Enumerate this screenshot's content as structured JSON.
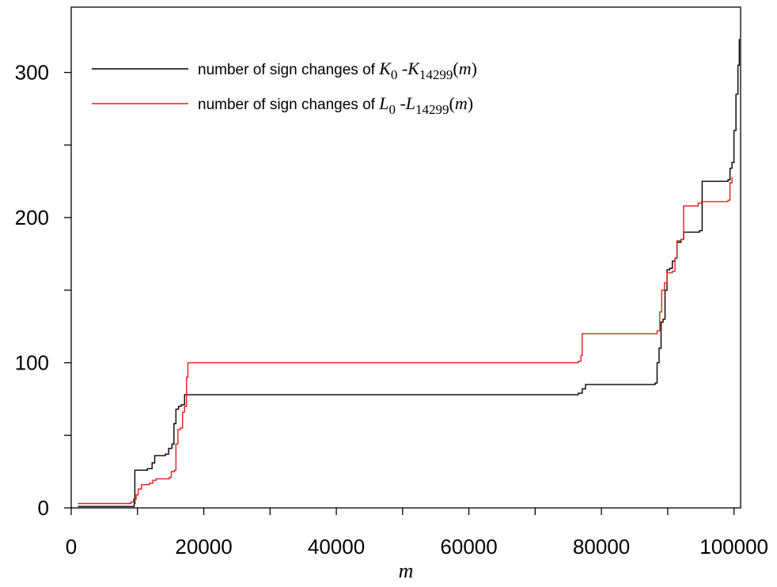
{
  "chart_data": {
    "type": "line",
    "xlabel": "m",
    "ylabel": "",
    "xlim": [
      0,
      101000
    ],
    "ylim": [
      0,
      345
    ],
    "x_ticks": [
      0,
      20000,
      40000,
      60000,
      80000,
      100000
    ],
    "x_tick_labels": [
      "0",
      "20000",
      "40000",
      "60000",
      "80000",
      "100000"
    ],
    "y_ticks": [
      0,
      100,
      200,
      300
    ],
    "y_tick_labels": [
      "0",
      "100",
      "200",
      "300"
    ],
    "x_minor_ticks": [
      10000,
      30000,
      50000,
      70000,
      90000
    ],
    "y_minor_ticks": [
      50,
      150,
      250
    ],
    "grid": false,
    "legend_position": "top-left",
    "series": [
      {
        "name": "number of  sign changes of K0 -K14299(m)",
        "legend_prefix": "number of  sign changes of ",
        "legend_math": [
          {
            "kind": "it",
            "text": "K"
          },
          {
            "kind": "sub",
            "text": "0"
          },
          {
            "kind": "rm",
            "text": " -"
          },
          {
            "kind": "it",
            "text": "K"
          },
          {
            "kind": "sub",
            "text": "14299"
          },
          {
            "kind": "rm",
            "text": "("
          },
          {
            "kind": "it",
            "text": "m"
          },
          {
            "kind": "rm",
            "text": ")"
          }
        ],
        "color": "#000000",
        "points": [
          [
            1000,
            1
          ],
          [
            9200,
            1
          ],
          [
            9500,
            3
          ],
          [
            9600,
            26
          ],
          [
            11500,
            27
          ],
          [
            12200,
            31
          ],
          [
            12600,
            36
          ],
          [
            14200,
            37
          ],
          [
            14700,
            41
          ],
          [
            15200,
            44
          ],
          [
            15500,
            58
          ],
          [
            15800,
            68
          ],
          [
            16200,
            70
          ],
          [
            16600,
            71
          ],
          [
            17100,
            78
          ],
          [
            40000,
            78
          ],
          [
            60000,
            78
          ],
          [
            76500,
            79
          ],
          [
            77100,
            82
          ],
          [
            77600,
            85
          ],
          [
            88100,
            86
          ],
          [
            88400,
            100
          ],
          [
            88700,
            110
          ],
          [
            89000,
            128
          ],
          [
            89300,
            130
          ],
          [
            89600,
            150
          ],
          [
            89900,
            164
          ],
          [
            90300,
            165
          ],
          [
            90700,
            170
          ],
          [
            91100,
            172
          ],
          [
            91400,
            183
          ],
          [
            92000,
            185
          ],
          [
            92400,
            190
          ],
          [
            94800,
            191
          ],
          [
            95200,
            225
          ],
          [
            99100,
            226
          ],
          [
            99400,
            234
          ],
          [
            99700,
            238
          ],
          [
            100000,
            260
          ],
          [
            100300,
            285
          ],
          [
            100600,
            305
          ],
          [
            100800,
            323
          ]
        ]
      },
      {
        "name": "number of  sign changes of L0 -L14299(m)",
        "legend_prefix": "number of  sign changes of ",
        "legend_math": [
          {
            "kind": "it",
            "text": "L"
          },
          {
            "kind": "sub",
            "text": "0"
          },
          {
            "kind": "rm",
            "text": " -"
          },
          {
            "kind": "it",
            "text": "L"
          },
          {
            "kind": "sub",
            "text": "14299"
          },
          {
            "kind": "rm",
            "text": "("
          },
          {
            "kind": "it",
            "text": "m"
          },
          {
            "kind": "rm",
            "text": ")"
          }
        ],
        "color": "#e0201b",
        "points": [
          [
            1000,
            3
          ],
          [
            9000,
            4
          ],
          [
            9400,
            6
          ],
          [
            9800,
            9
          ],
          [
            10100,
            13
          ],
          [
            10600,
            16
          ],
          [
            11800,
            17
          ],
          [
            12300,
            19
          ],
          [
            12800,
            20
          ],
          [
            14800,
            21
          ],
          [
            15100,
            25
          ],
          [
            15600,
            26
          ],
          [
            15800,
            44
          ],
          [
            16100,
            54
          ],
          [
            16500,
            55
          ],
          [
            16800,
            66
          ],
          [
            17100,
            70
          ],
          [
            17400,
            90
          ],
          [
            17600,
            100
          ],
          [
            40000,
            100
          ],
          [
            60000,
            100
          ],
          [
            76500,
            101
          ],
          [
            76900,
            105
          ],
          [
            77100,
            120
          ],
          [
            88400,
            122
          ],
          [
            88800,
            135
          ],
          [
            89100,
            150
          ],
          [
            89500,
            155
          ],
          [
            89900,
            162
          ],
          [
            90700,
            163
          ],
          [
            91100,
            172
          ],
          [
            91400,
            184
          ],
          [
            92000,
            185
          ],
          [
            92400,
            208
          ],
          [
            94600,
            210
          ],
          [
            95100,
            211
          ],
          [
            99100,
            212
          ],
          [
            99400,
            224
          ],
          [
            99700,
            228
          ]
        ]
      }
    ]
  }
}
